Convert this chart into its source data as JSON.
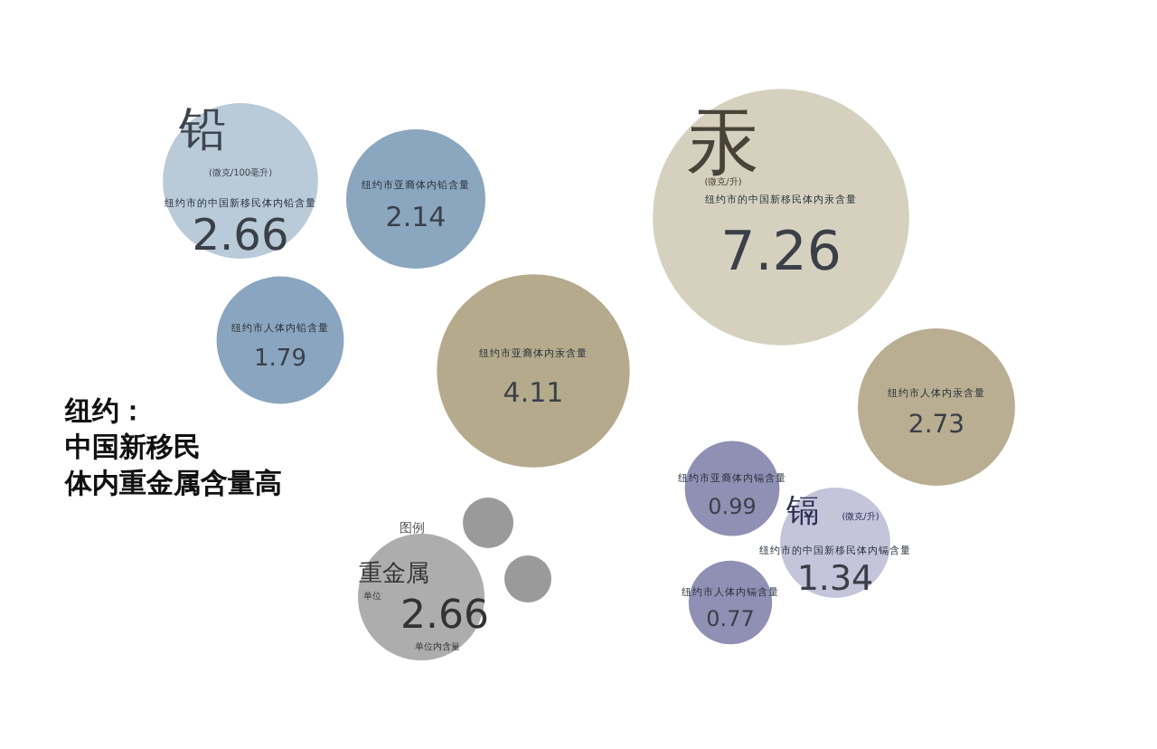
{
  "chart_data": {
    "type": "other",
    "title": "纽约：中国新移民体内重金属含量高",
    "categories": [
      "纽约市的中国新移民体内铅含量",
      "纽约市亚裔体内铅含量",
      "纽约市人体内铅含量",
      "纽约市的中国新移民体内汞含量",
      "纽约市亚裔体内汞含量",
      "纽约市人体内汞含量",
      "纽约市亚裔体内镉含量",
      "纽约市的中国新移民体内镉含量",
      "纽约市人体内镉含量"
    ],
    "values": [
      2.66,
      2.14,
      1.79,
      7.26,
      4.11,
      2.73,
      0.99,
      1.34,
      0.77
    ],
    "colors": [
      "#b9cad8",
      "#8ba6bf",
      "#8aa5bf",
      "#d6d1bf",
      "#b5aa8c",
      "#b9ae91",
      "#8f90b3",
      "#c4c4da",
      "#8f90b3"
    ],
    "data_labels": true,
    "annotations": [
      "铅",
      "(微克/100毫升)",
      "汞",
      "(微克/升)",
      "镉",
      "(微克/升)",
      "图例",
      "重金属",
      "单位",
      "2.66",
      "单位内含量"
    ]
  }
}
